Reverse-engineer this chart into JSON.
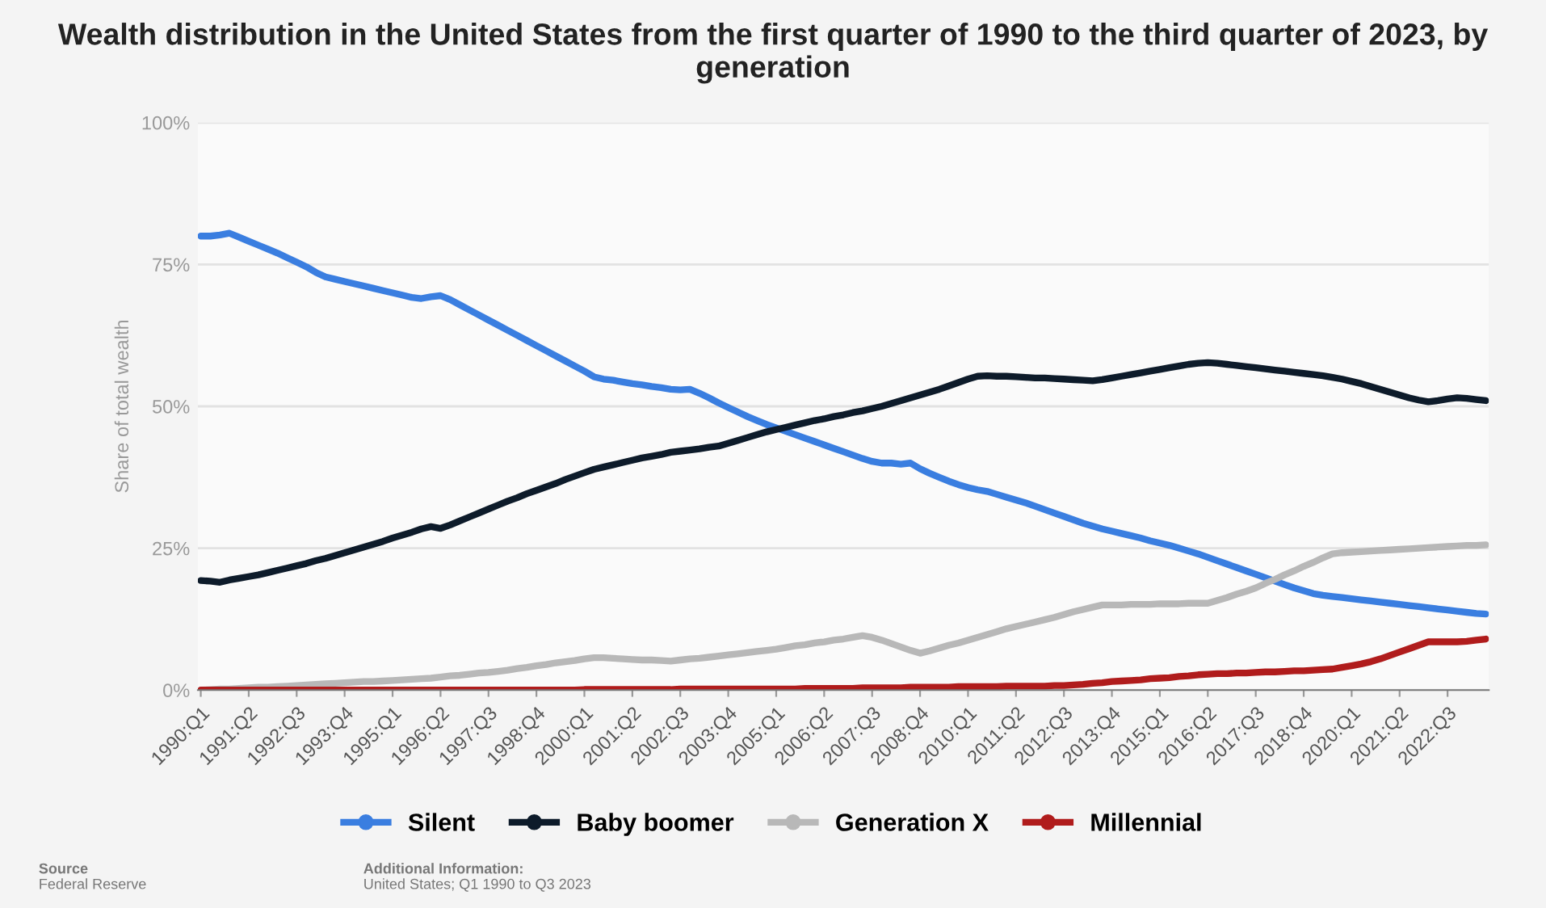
{
  "chart_data": {
    "type": "line",
    "title": "Wealth distribution in the United States from the first quarter of 1990 to the third quarter of 2023, by generation",
    "ylabel": "Share of total wealth",
    "categories": [
      "1990:Q1",
      null,
      null,
      null,
      null,
      "1991:Q2",
      null,
      null,
      null,
      null,
      "1992:Q3",
      null,
      null,
      null,
      null,
      "1993:Q4",
      null,
      null,
      null,
      null,
      "1995:Q1",
      null,
      null,
      null,
      null,
      "1996:Q2",
      null,
      null,
      null,
      null,
      "1997:Q3",
      null,
      null,
      null,
      null,
      "1998:Q4",
      null,
      null,
      null,
      null,
      "2000:Q1",
      null,
      null,
      null,
      null,
      "2001:Q2",
      null,
      null,
      null,
      null,
      "2002:Q3",
      null,
      null,
      null,
      null,
      "2003:Q4",
      null,
      null,
      null,
      null,
      "2005:Q1",
      null,
      null,
      null,
      null,
      "2006:Q2",
      null,
      null,
      null,
      null,
      "2007:Q3",
      null,
      null,
      null,
      null,
      "2008:Q4",
      null,
      null,
      null,
      null,
      "2010:Q1",
      null,
      null,
      null,
      null,
      "2011:Q2",
      null,
      null,
      null,
      null,
      "2012:Q3",
      null,
      null,
      null,
      null,
      "2013:Q4",
      null,
      null,
      null,
      null,
      "2015:Q1",
      null,
      null,
      null,
      null,
      "2016:Q2",
      null,
      null,
      null,
      null,
      "2017:Q3",
      null,
      null,
      null,
      null,
      "2018:Q4",
      null,
      null,
      null,
      null,
      "2020:Q1",
      null,
      null,
      null,
      null,
      "2021:Q2",
      null,
      null,
      null,
      null,
      "2022:Q3",
      null,
      null,
      null,
      null
    ],
    "ylim": [
      0,
      100
    ],
    "yticks": [
      {
        "value": 0,
        "label": "0%"
      },
      {
        "value": 25,
        "label": "25%"
      },
      {
        "value": 50,
        "label": "50%"
      },
      {
        "value": 75,
        "label": "75%"
      },
      {
        "value": 100,
        "label": "100%"
      }
    ],
    "grid": "y",
    "legend": "bottom",
    "line_style": "solid",
    "series": [
      {
        "name": "Silent",
        "color": "#3a7ee0",
        "values": [
          80,
          80,
          80.2,
          80.5,
          79.8,
          79.1,
          78.4,
          77.7,
          77,
          76.2,
          75.4,
          74.6,
          73.6,
          72.8,
          72.4,
          72,
          71.6,
          71.2,
          70.8,
          70.4,
          70,
          69.6,
          69.2,
          69,
          69.3,
          69.5,
          68.8,
          67.9,
          67,
          66.1,
          65.2,
          64.3,
          63.4,
          62.5,
          61.6,
          60.7,
          59.8,
          58.9,
          58,
          57.1,
          56.2,
          55.2,
          54.8,
          54.6,
          54.3,
          54,
          53.8,
          53.5,
          53.3,
          53,
          52.9,
          53,
          52.3,
          51.5,
          50.6,
          49.8,
          49,
          48.2,
          47.5,
          46.8,
          46.2,
          45.6,
          45,
          44.4,
          43.8,
          43.2,
          42.6,
          42,
          41.4,
          40.8,
          40.3,
          40,
          40,
          39.8,
          40,
          39,
          38.2,
          37.5,
          36.8,
          36.2,
          35.7,
          35.3,
          35,
          34.5,
          34,
          33.5,
          33,
          32.4,
          31.8,
          31.2,
          30.6,
          30,
          29.4,
          28.9,
          28.4,
          28,
          27.6,
          27.2,
          26.8,
          26.3,
          25.9,
          25.5,
          25,
          24.5,
          24,
          23.4,
          22.8,
          22.2,
          21.6,
          21,
          20.4,
          19.8,
          19.2,
          18.6,
          18,
          17.5,
          17,
          16.7,
          16.5,
          16.3,
          16.1,
          15.9,
          15.7,
          15.5,
          15.3,
          15.1,
          14.9,
          14.7,
          14.5,
          14.3,
          14.1,
          13.9,
          13.7,
          13.5,
          13.4
        ]
      },
      {
        "name": "Baby boomer",
        "color": "#0d1b2a",
        "values": [
          19.3,
          19.2,
          19,
          19.4,
          19.7,
          20,
          20.3,
          20.7,
          21.1,
          21.5,
          21.9,
          22.3,
          22.8,
          23.2,
          23.7,
          24.2,
          24.7,
          25.2,
          25.7,
          26.2,
          26.8,
          27.3,
          27.8,
          28.4,
          28.8,
          28.5,
          29.1,
          29.8,
          30.5,
          31.2,
          31.9,
          32.6,
          33.3,
          33.9,
          34.6,
          35.2,
          35.8,
          36.4,
          37.1,
          37.7,
          38.3,
          38.9,
          39.3,
          39.7,
          40.1,
          40.5,
          40.9,
          41.2,
          41.5,
          41.9,
          42.1,
          42.3,
          42.5,
          42.8,
          43,
          43.5,
          44,
          44.5,
          45,
          45.5,
          45.9,
          46.3,
          46.7,
          47.1,
          47.5,
          47.8,
          48.2,
          48.5,
          48.9,
          49.2,
          49.6,
          50,
          50.5,
          51,
          51.5,
          52,
          52.5,
          53,
          53.6,
          54.2,
          54.8,
          55.3,
          55.4,
          55.3,
          55.3,
          55.2,
          55.1,
          55,
          55,
          54.9,
          54.8,
          54.7,
          54.6,
          54.5,
          54.7,
          55,
          55.3,
          55.6,
          55.9,
          56.2,
          56.5,
          56.8,
          57.1,
          57.4,
          57.6,
          57.7,
          57.6,
          57.4,
          57.2,
          57,
          56.8,
          56.6,
          56.4,
          56.2,
          56,
          55.8,
          55.6,
          55.4,
          55.1,
          54.8,
          54.4,
          54,
          53.5,
          53,
          52.5,
          52,
          51.5,
          51.1,
          50.8,
          51,
          51.3,
          51.5,
          51.4,
          51.2,
          51
        ]
      },
      {
        "name": "Generation X",
        "color": "#b8b8b8",
        "values": [
          0,
          0.1,
          0.2,
          0.2,
          0.3,
          0.4,
          0.5,
          0.5,
          0.6,
          0.7,
          0.8,
          0.9,
          1,
          1.1,
          1.2,
          1.3,
          1.4,
          1.5,
          1.5,
          1.6,
          1.7,
          1.8,
          1.9,
          2,
          2.1,
          2.3,
          2.5,
          2.6,
          2.8,
          3,
          3.1,
          3.3,
          3.5,
          3.8,
          4,
          4.3,
          4.5,
          4.8,
          5,
          5.2,
          5.5,
          5.7,
          5.7,
          5.6,
          5.5,
          5.4,
          5.3,
          5.3,
          5.2,
          5.1,
          5.3,
          5.5,
          5.6,
          5.8,
          6,
          6.2,
          6.4,
          6.6,
          6.8,
          7,
          7.2,
          7.5,
          7.8,
          8,
          8.3,
          8.5,
          8.8,
          9,
          9.3,
          9.6,
          9.3,
          8.8,
          8.2,
          7.6,
          7,
          6.5,
          6.9,
          7.4,
          7.9,
          8.3,
          8.8,
          9.3,
          9.8,
          10.3,
          10.8,
          11.2,
          11.6,
          12,
          12.4,
          12.8,
          13.3,
          13.8,
          14.2,
          14.6,
          15,
          15,
          15,
          15.1,
          15.1,
          15.1,
          15.2,
          15.2,
          15.2,
          15.3,
          15.3,
          15.3,
          15.8,
          16.3,
          16.9,
          17.4,
          18,
          18.8,
          19.5,
          20.3,
          21,
          21.8,
          22.5,
          23.3,
          24,
          24.2,
          24.3,
          24.4,
          24.5,
          24.6,
          24.7,
          24.8,
          24.9,
          25,
          25.1,
          25.2,
          25.3,
          25.4,
          25.5,
          25.5,
          25.6
        ]
      },
      {
        "name": "Millennial",
        "color": "#b01c1c",
        "values": [
          0,
          0,
          0,
          0,
          0,
          0,
          0,
          0,
          0,
          0,
          0,
          0,
          0,
          0,
          0,
          0,
          0,
          0,
          0,
          0,
          0,
          0,
          0,
          0,
          0,
          0,
          0,
          0,
          0,
          0,
          0,
          0,
          0,
          0,
          0,
          0,
          0,
          0,
          0,
          0,
          0.1,
          0.1,
          0.1,
          0.1,
          0.1,
          0.1,
          0.1,
          0.1,
          0.1,
          0.1,
          0.2,
          0.2,
          0.2,
          0.2,
          0.2,
          0.2,
          0.2,
          0.2,
          0.2,
          0.2,
          0.2,
          0.2,
          0.2,
          0.3,
          0.3,
          0.3,
          0.3,
          0.3,
          0.3,
          0.4,
          0.4,
          0.4,
          0.4,
          0.4,
          0.5,
          0.5,
          0.5,
          0.5,
          0.5,
          0.6,
          0.6,
          0.6,
          0.6,
          0.6,
          0.7,
          0.7,
          0.7,
          0.7,
          0.7,
          0.8,
          0.8,
          0.9,
          1,
          1.2,
          1.3,
          1.5,
          1.6,
          1.7,
          1.8,
          2,
          2.1,
          2.2,
          2.4,
          2.5,
          2.7,
          2.8,
          2.9,
          2.9,
          3,
          3,
          3.1,
          3.2,
          3.2,
          3.3,
          3.4,
          3.4,
          3.5,
          3.6,
          3.7,
          4,
          4.3,
          4.6,
          5,
          5.5,
          6.1,
          6.7,
          7.3,
          7.9,
          8.5,
          8.5,
          8.5,
          8.5,
          8.6,
          8.8,
          9
        ]
      }
    ],
    "annotations": [
      "Source",
      "Federal Reserve",
      "Additional Information:",
      "United States; Q1 1990 to Q3 2023"
    ]
  }
}
